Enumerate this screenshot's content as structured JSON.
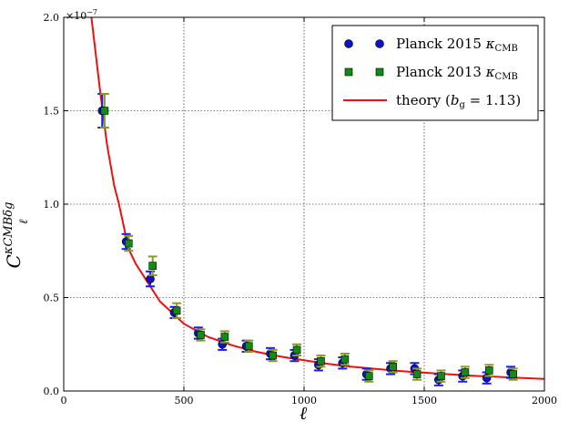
{
  "chart_data": {
    "type": "scatter",
    "xlabel": "ℓ",
    "ylabel": "C_ℓ^{κCMB δg}",
    "ylabel_base": "C",
    "ylabel_sub": "ℓ",
    "ylabel_sup": "κCMBδg",
    "y_scale_label": "×10",
    "y_scale_exp": "−7",
    "xlim": [
      0,
      2000
    ],
    "ylim": [
      0.0,
      2.0
    ],
    "xticks": [
      0,
      500,
      1000,
      1500,
      2000
    ],
    "xtick_labels": [
      "0",
      "500",
      "1000",
      "1500",
      "2000"
    ],
    "yticks": [
      0.0,
      0.5,
      1.0,
      1.5,
      2.0
    ],
    "ytick_labels": [
      "0.0",
      "0.5",
      "1.0",
      "1.5",
      "2.0"
    ],
    "grid": true,
    "legend_position": "top-right",
    "series": [
      {
        "name": "Planck 2015 κ_CMB",
        "label_text": "Planck 2015 ",
        "label_sym": "κ",
        "label_sub": "CMB",
        "marker": "circle",
        "color": "#1010c8",
        "errcolor": "#1a1aff",
        "x": [
          160,
          260,
          360,
          460,
          560,
          660,
          760,
          860,
          960,
          1060,
          1160,
          1260,
          1360,
          1460,
          1560,
          1660,
          1760,
          1860
        ],
        "y": [
          1.5,
          0.8,
          0.6,
          0.42,
          0.31,
          0.25,
          0.24,
          0.2,
          0.19,
          0.14,
          0.15,
          0.09,
          0.12,
          0.12,
          0.06,
          0.08,
          0.07,
          0.1
        ],
        "err": [
          0.09,
          0.04,
          0.04,
          0.03,
          0.03,
          0.03,
          0.03,
          0.03,
          0.03,
          0.03,
          0.03,
          0.03,
          0.03,
          0.03,
          0.03,
          0.03,
          0.03,
          0.03
        ]
      },
      {
        "name": "Planck 2013 κ_CMB",
        "label_text": "Planck 2013 ",
        "label_sym": "κ",
        "label_sub": "CMB",
        "marker": "square",
        "color": "#138a13",
        "errcolor": "#8a9a20",
        "x": [
          170,
          270,
          370,
          470,
          570,
          670,
          770,
          870,
          970,
          1070,
          1170,
          1270,
          1370,
          1470,
          1570,
          1670,
          1770,
          1870
        ],
        "y": [
          1.5,
          0.79,
          0.67,
          0.43,
          0.3,
          0.29,
          0.24,
          0.19,
          0.22,
          0.16,
          0.17,
          0.08,
          0.13,
          0.09,
          0.08,
          0.1,
          0.11,
          0.09
        ],
        "err": [
          0.09,
          0.04,
          0.05,
          0.04,
          0.03,
          0.03,
          0.03,
          0.03,
          0.03,
          0.03,
          0.03,
          0.03,
          0.03,
          0.03,
          0.03,
          0.03,
          0.03,
          0.03
        ]
      },
      {
        "name": "theory (b_g = 1.13)",
        "label_text": "theory (",
        "label_sym": "b",
        "label_sub": "g",
        "label_tail": " = 1.13)",
        "type": "line",
        "color": "#ee1010",
        "x": [
          115,
          150,
          180,
          210,
          230,
          270,
          300,
          350,
          400,
          450,
          500,
          600,
          700,
          800,
          900,
          1000,
          1100,
          1200,
          1300,
          1400,
          1500,
          1600,
          1700,
          1800,
          1900,
          2000
        ],
        "y": [
          2.0,
          1.62,
          1.32,
          1.1,
          1.0,
          0.76,
          0.68,
          0.58,
          0.48,
          0.42,
          0.36,
          0.29,
          0.245,
          0.21,
          0.185,
          0.165,
          0.145,
          0.13,
          0.118,
          0.107,
          0.098,
          0.09,
          0.082,
          0.076,
          0.07,
          0.065
        ]
      }
    ]
  }
}
